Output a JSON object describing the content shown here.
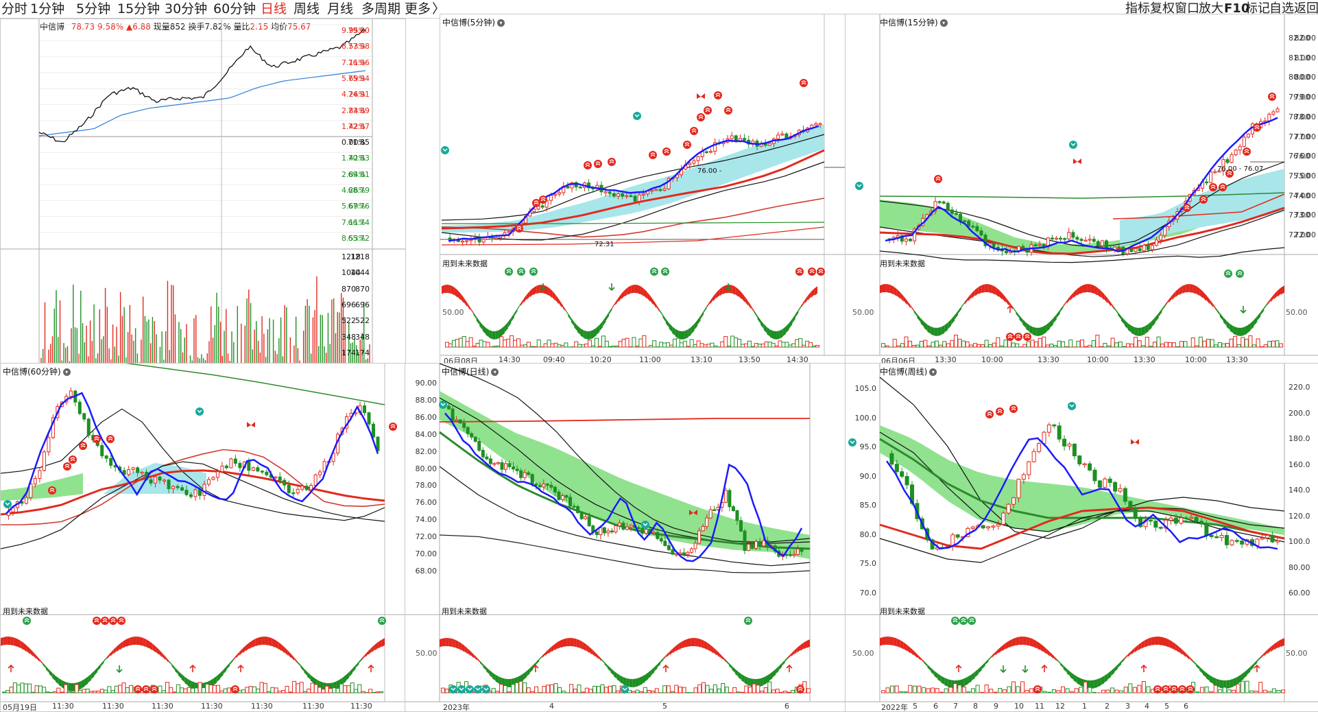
{
  "toolbar": {
    "periods": [
      {
        "label": "分时",
        "active": false
      },
      {
        "label": "1分钟",
        "active": false
      },
      {
        "label": "5分钟",
        "active": false
      },
      {
        "label": "15分钟",
        "active": false
      },
      {
        "label": "30分钟",
        "active": false
      },
      {
        "label": "60分钟",
        "active": false
      },
      {
        "label": "日线",
        "active": true
      },
      {
        "label": "周线",
        "active": false
      },
      {
        "label": "月线",
        "active": false
      },
      {
        "label": "多周期",
        "active": false
      },
      {
        "label": "更多",
        "active": false
      }
    ],
    "right": [
      "指标",
      "复权",
      "窗口",
      "放大",
      "F10",
      "标记",
      "自选",
      "返回"
    ]
  },
  "intraday": {
    "name": "中信博",
    "price": "78.73",
    "pct": "9.58%",
    "change": "▲6.88",
    "vol_label": "现量",
    "vol": "852",
    "turnover_label": "换手",
    "turnover": "7.82%",
    "ratio_label": "量比",
    "ratio": "2.15",
    "avg_label": "均价",
    "avg": "75.67",
    "price_ticks": [
      "79.00",
      "77.98",
      "76.96",
      "75.94",
      "74.91",
      "73.89",
      "72.87",
      "71.85",
      "70.83",
      "69.81",
      "68.79",
      "67.76",
      "66.74",
      "65.72"
    ],
    "pct_ticks": [
      "9.95%",
      "8.53%",
      "7.11%",
      "5.69%",
      "4.26%",
      "2.84%",
      "1.42%",
      "0.00%",
      "1.42%",
      "2.84%",
      "4.26%",
      "5.69%",
      "7.11%",
      "8.53%"
    ],
    "vol_ticks": [
      "1218",
      "1044",
      "870",
      "696",
      "522",
      "348",
      "174"
    ]
  },
  "panels": {
    "p5m": {
      "title": "中信博(5分钟)",
      "note": "用到未来数据",
      "mark": "76.00 - ",
      "lowmark": "72.31",
      "dates": [
        "06月08日",
        "14:30",
        "09:40",
        "10:20",
        "11:00",
        "13:10",
        "13:50",
        "14:30"
      ],
      "osc": "50.00"
    },
    "p15m": {
      "title": "中信博(15分钟)",
      "note": "用到未来数据",
      "mark": "76.00 - 76.07",
      "ticks": [
        "82.00",
        "81.00",
        "80.00",
        "79.00",
        "78.00",
        "77.00",
        "76.00",
        "75.00",
        "74.00",
        "73.00",
        "72.00"
      ],
      "dates": [
        "06月06日",
        "13:30",
        "10:00",
        "13:30",
        "10:00",
        "13:30",
        "10:00",
        "13:30"
      ],
      "osc": "50.00"
    },
    "p60m": {
      "title": "中信博(60分钟)",
      "note": "用到未来数据",
      "dates": [
        "05月19日",
        "11:30",
        "11:30",
        "11:30",
        "11:30",
        "11:30",
        "11:30",
        "11:30"
      ]
    },
    "pday": {
      "title": "中信博(日线)",
      "note": "用到未来数据",
      "ticks": [
        "90.00",
        "88.00",
        "86.00",
        "84.00",
        "82.00",
        "80.00",
        "78.00",
        "76.00",
        "74.00",
        "72.00",
        "70.00",
        "68.00"
      ],
      "dates": [
        "2023年",
        "4",
        "5",
        "6"
      ],
      "osc": "50.00"
    },
    "pweek": {
      "title": "中信博(周线)",
      "note": "用到未来数据",
      "ticks": [
        "105.0",
        "100.0",
        "95.0",
        "90.0",
        "85.0",
        "80.0",
        "75.0",
        "70.0"
      ],
      "rticks": [
        "220.0",
        "200.0",
        "180.0",
        "160.0",
        "140.0",
        "120.0",
        "100.0",
        "80.00",
        "60.00"
      ],
      "dates": [
        "2022年",
        "5",
        "6",
        "7",
        "8",
        "9",
        "10",
        "11",
        "12",
        "1",
        "2",
        "3",
        "4",
        "5",
        "6"
      ],
      "osc": "50.00"
    }
  },
  "colors": {
    "up": "#e3281d",
    "down": "#1e8f23",
    "ma": "#1a1aff"
  }
}
